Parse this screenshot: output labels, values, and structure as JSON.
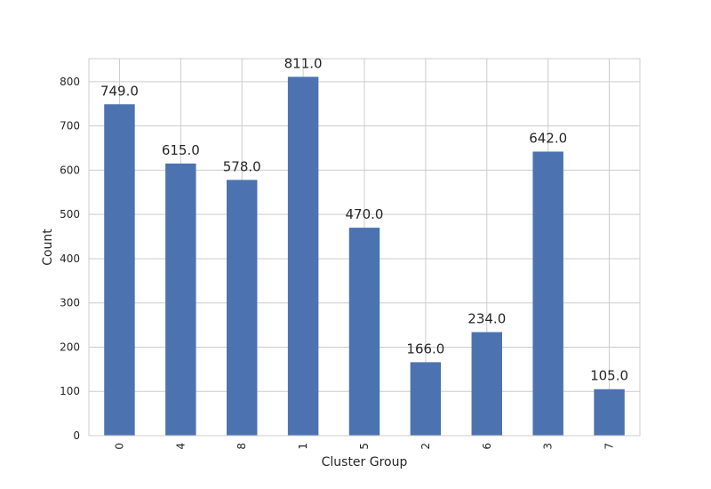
{
  "chart_data": {
    "type": "bar",
    "categories": [
      "0",
      "4",
      "8",
      "1",
      "5",
      "2",
      "6",
      "3",
      "7"
    ],
    "values": [
      749.0,
      615.0,
      578.0,
      811.0,
      470.0,
      166.0,
      234.0,
      642.0,
      105.0
    ],
    "data_labels": [
      "749.0",
      "615.0",
      "578.0",
      "811.0",
      "470.0",
      "166.0",
      "234.0",
      "642.0",
      "105.0"
    ],
    "title": "",
    "xlabel": "Cluster Group",
    "ylabel": "Count",
    "ylim": [
      0,
      852
    ],
    "yticks": [
      0,
      100,
      200,
      300,
      400,
      500,
      600,
      700,
      800
    ],
    "grid": true,
    "bar_color": "#4c72b0",
    "x_tick_rotation": "vertical"
  }
}
